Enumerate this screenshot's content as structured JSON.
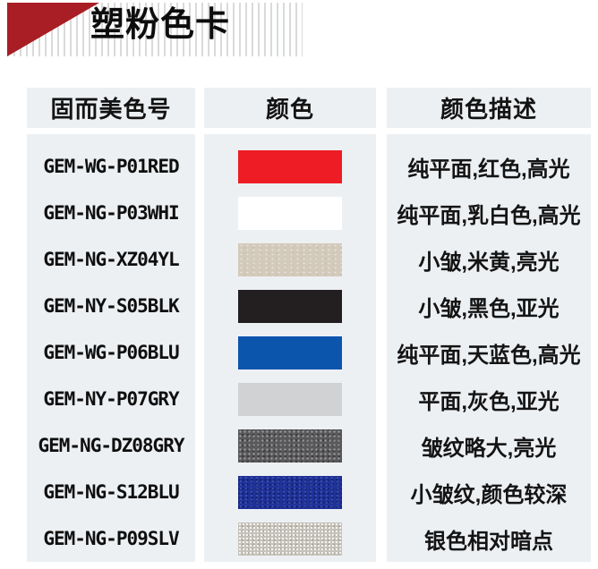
{
  "header": {
    "title": "塑粉色卡",
    "accent_color": "#a81e24"
  },
  "table": {
    "cell_bg": "#edf0f3",
    "columns": [
      "固而美色号",
      "颜色",
      "颜色描述"
    ],
    "rows": [
      {
        "code": "GEM-WG-P01RED",
        "swatch_color": "#ed1c25",
        "texture": "smooth",
        "description": "纯平面,红色,高光"
      },
      {
        "code": "GEM-NG-P03WHI",
        "swatch_color": "#ffffff",
        "texture": "smooth",
        "description": "纯平面,乳白色,高光"
      },
      {
        "code": "GEM-NG-XZ04YL",
        "swatch_color": "#d3cabb",
        "texture": "fine",
        "description": "小皱,米黄,亮光"
      },
      {
        "code": "GEM-NY-S05BLK",
        "swatch_color": "#231f20",
        "texture": "smooth",
        "description": "小皱,黑色,亚光"
      },
      {
        "code": "GEM-WG-P06BLU",
        "swatch_color": "#0b55ad",
        "texture": "smooth",
        "description": "纯平面,天蓝色,高光"
      },
      {
        "code": "GEM-NY-P07GRY",
        "swatch_color": "#d0d2d4",
        "texture": "smooth",
        "description": "平面,灰色,亚光"
      },
      {
        "code": "GEM-NG-DZ08GRY",
        "swatch_color": "#59585a",
        "texture": "speckle",
        "description": "皱纹略大,亮光"
      },
      {
        "code": "GEM-NG-S12BLU",
        "swatch_color": "#20339b",
        "texture": "wrinkle",
        "description": "小皱纹,颜色较深"
      },
      {
        "code": "GEM-NG-P09SLV",
        "swatch_color": "#c5c2b9",
        "texture": "speckle-light",
        "description": "银色相对暗点"
      }
    ]
  }
}
